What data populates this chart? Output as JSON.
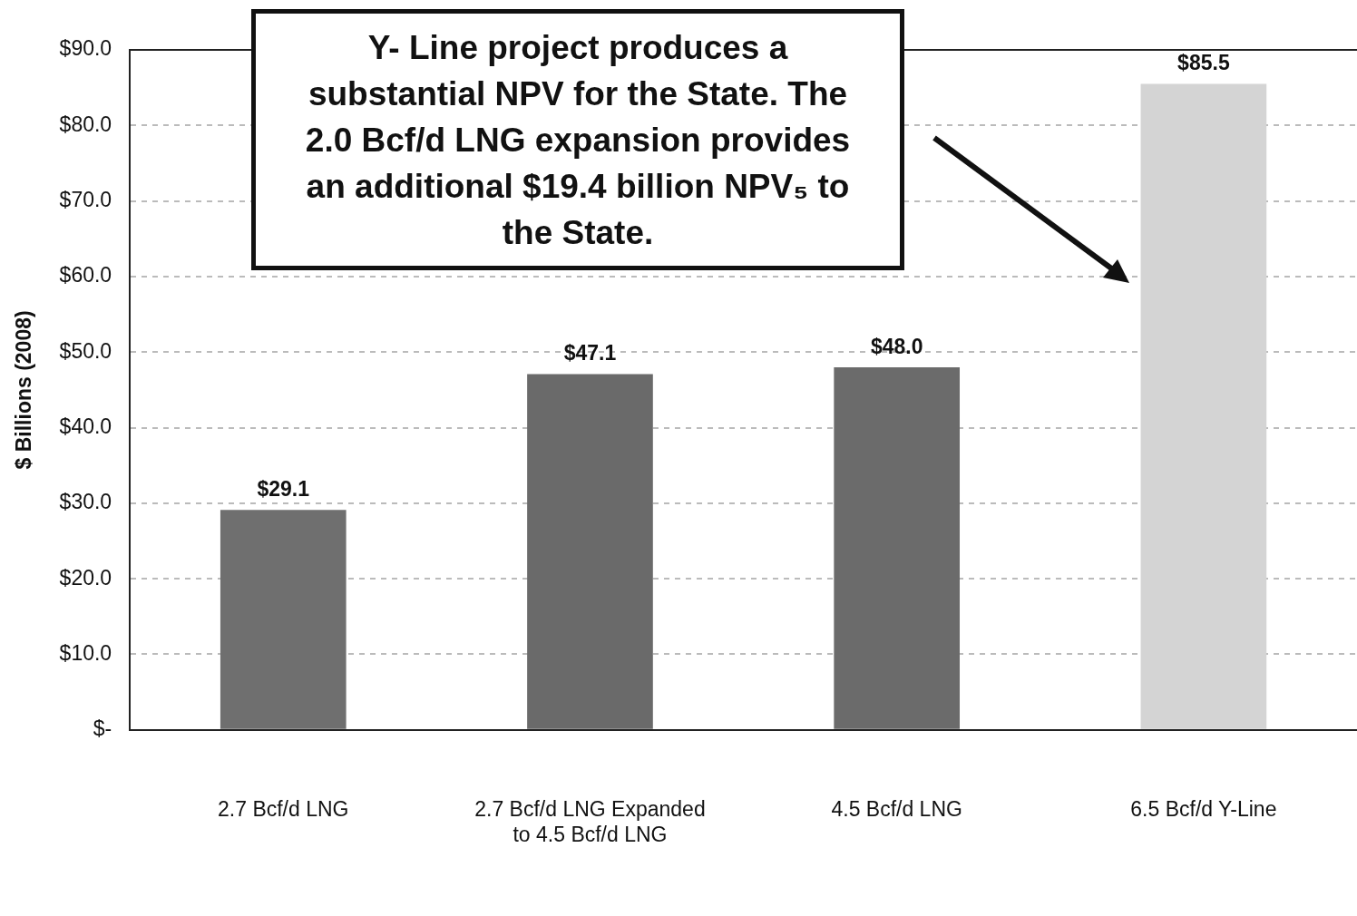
{
  "chart_data": {
    "type": "bar",
    "ylabel": "$ Billions (2008)",
    "categories": [
      "2.7 Bcf/d LNG",
      "2.7 Bcf/d LNG Expanded to 4.5 Bcf/d LNG",
      "4.5 Bcf/d LNG",
      "6.5 Bcf/d Y-Line"
    ],
    "values": [
      29.1,
      47.1,
      48.0,
      85.5
    ],
    "colors": [
      "#6f6f6f",
      "#6a6a6a",
      "#6b6b6b",
      "#d4d4d4"
    ],
    "value_labels": [
      "$29.1",
      "$47.1",
      "$48.0",
      "$85.5"
    ],
    "ylim": [
      0,
      90
    ],
    "yticks": [
      {
        "value": 0,
        "label": "$-"
      },
      {
        "value": 10,
        "label": "$10.0"
      },
      {
        "value": 20,
        "label": "$20.0"
      },
      {
        "value": 30,
        "label": "$30.0"
      },
      {
        "value": 40,
        "label": "$40.0"
      },
      {
        "value": 50,
        "label": "$50.0"
      },
      {
        "value": 60,
        "label": "$60.0"
      },
      {
        "value": 70,
        "label": "$70.0"
      },
      {
        "value": 80,
        "label": "$80.0"
      },
      {
        "value": 90,
        "label": "$90.0"
      }
    ],
    "grid": "y",
    "legend": false,
    "annotations": [
      "Y- Line project produces a substantial NPV for the State. The 2.0 Bcf/d LNG expansion provides an additional $19.4 billion NPV₅ to the State."
    ]
  }
}
